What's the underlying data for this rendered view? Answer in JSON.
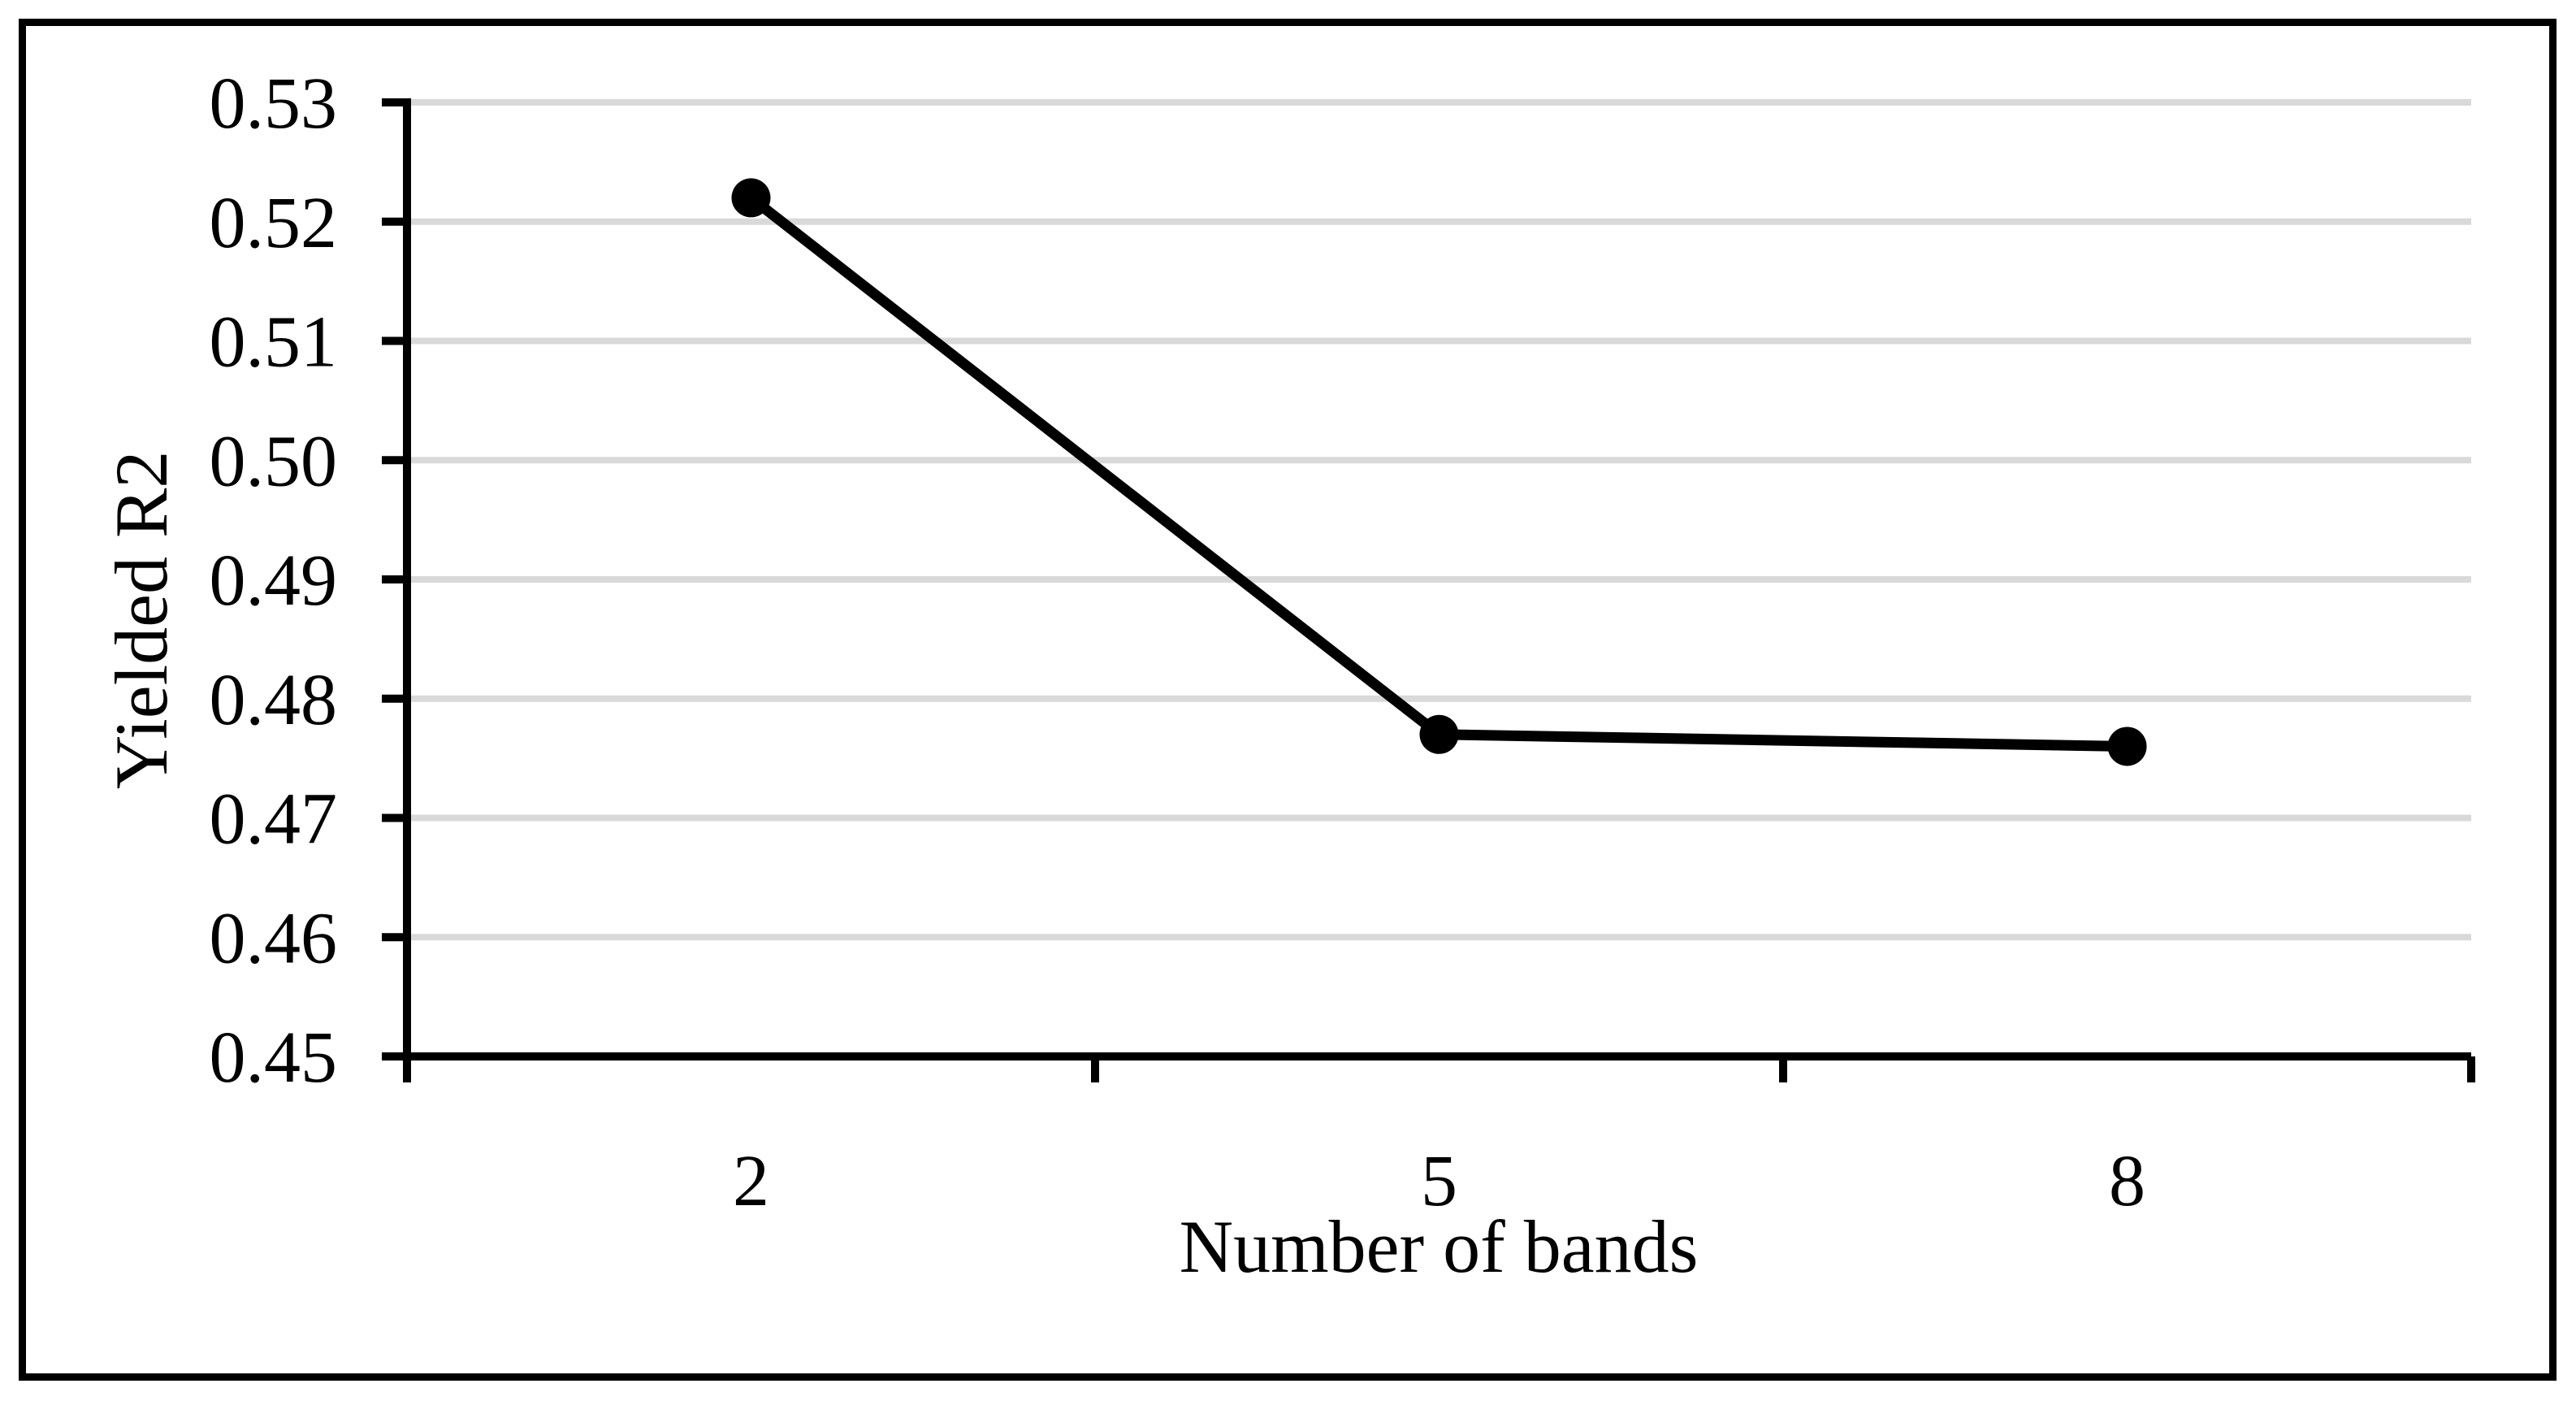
{
  "chart": {
    "background_color": "#ffffff",
    "frame_color": "#000000"
  },
  "chart_data": {
    "type": "line",
    "categories": [
      "2",
      "5",
      "8"
    ],
    "series": [
      {
        "name": "Yielded R2",
        "values": [
          0.522,
          0.477,
          0.476
        ]
      }
    ],
    "title": "",
    "xlabel": "Number of bands",
    "ylabel": "Yielded R2",
    "ylim": [
      0.45,
      0.53
    ],
    "ytick_step": 0.01,
    "ytick_labels": [
      "0.45",
      "0.46",
      "0.47",
      "0.48",
      "0.49",
      "0.50",
      "0.51",
      "0.52",
      "0.53"
    ],
    "grid": true,
    "legend": false,
    "gridline_color": "#D9D9D9",
    "axis_color": "#000000",
    "line_color": "#000000",
    "marker": "circle",
    "marker_color": "#000000"
  }
}
